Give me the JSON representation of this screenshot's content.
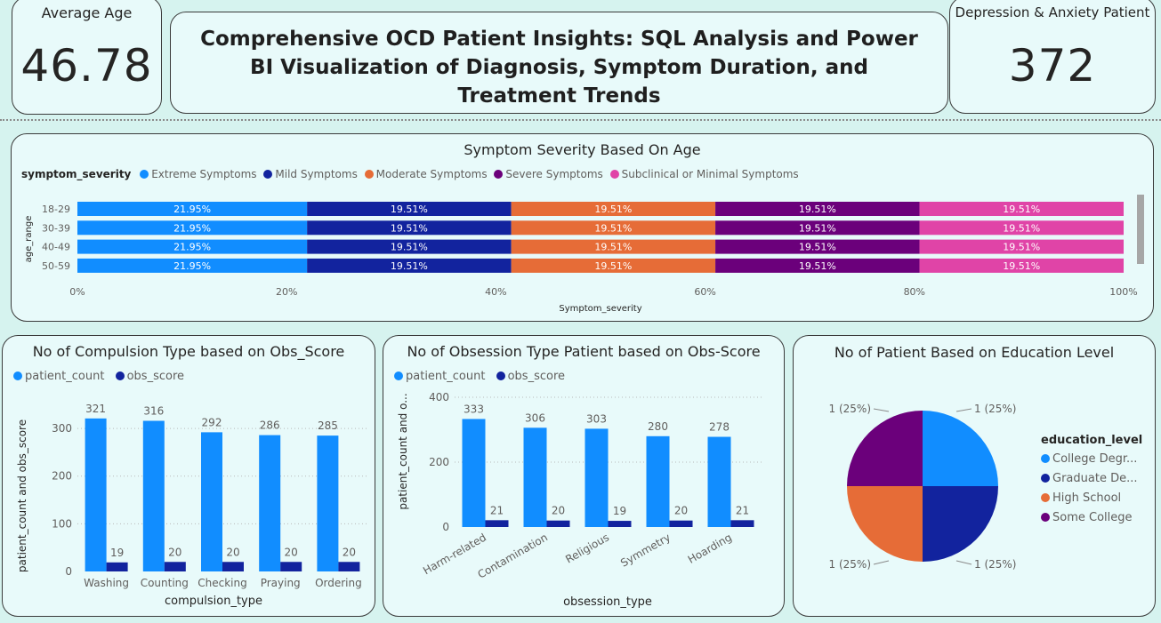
{
  "kpi_left": {
    "label": "Average Age",
    "value": "46.78"
  },
  "kpi_right": {
    "label": "Depression & Anxiety Patient",
    "value": "372"
  },
  "report_title": "Comprehensive OCD Patient Insights: SQL Analysis and Power BI Visualization of Diagnosis, Symptom Duration, and Treatment Trends",
  "colors": {
    "extreme": "#118dff",
    "mild": "#12239e",
    "moderate": "#e66c37",
    "severe": "#6b007b",
    "subclinical": "#e044a7",
    "patient_count": "#118dff",
    "obs_score": "#12239e"
  },
  "severity_chart": {
    "title": "Symptom Severity Based On Age",
    "legend_title": "symptom_severity",
    "xlabel": "Symptom_severity",
    "ylabel": "age_range",
    "x_ticks": [
      "0%",
      "20%",
      "40%",
      "60%",
      "80%",
      "100%"
    ]
  },
  "compulsion_chart": {
    "title": "No of Compulsion Type based on Obs_Score",
    "xlabel": "compulsion_type",
    "ylabel": "patient_count and obs_score",
    "y_ticks": [
      "0",
      "100",
      "200",
      "300"
    ]
  },
  "obsession_chart": {
    "title": "No of Obsession Type Patient based on Obs-Score",
    "xlabel": "obsession_type",
    "ylabel": "patient_count and o...",
    "y_ticks": [
      "0",
      "200",
      "400"
    ]
  },
  "education_chart": {
    "title": "No of Patient Based on Education Level",
    "legend_title": "education_level",
    "legend_labels": [
      "College Degr...",
      "Graduate De...",
      "High School",
      "Some College"
    ]
  },
  "chart_data": [
    {
      "type": "bar",
      "orientation": "horizontal",
      "stacked": "100%",
      "title": "Symptom Severity Based On Age",
      "xlabel": "Symptom_severity",
      "ylabel": "age_range",
      "categories": [
        "18-29",
        "30-39",
        "40-49",
        "50-59"
      ],
      "legend_position": "top-left",
      "xlim": [
        0,
        100
      ],
      "series": [
        {
          "name": "Extreme Symptoms",
          "values": [
            21.95,
            21.95,
            21.95,
            21.95
          ]
        },
        {
          "name": "Mild Symptoms",
          "values": [
            19.51,
            19.51,
            19.51,
            19.51
          ]
        },
        {
          "name": "Moderate Symptoms",
          "values": [
            19.51,
            19.51,
            19.51,
            19.51
          ]
        },
        {
          "name": "Severe Symptoms",
          "values": [
            19.51,
            19.51,
            19.51,
            19.51
          ]
        },
        {
          "name": "Subclinical or Minimal Symptoms",
          "values": [
            19.51,
            19.51,
            19.51,
            19.51
          ]
        }
      ]
    },
    {
      "type": "bar",
      "title": "No of Compulsion Type based on Obs_Score",
      "xlabel": "compulsion_type",
      "ylabel": "patient_count and obs_score",
      "categories": [
        "Washing",
        "Counting",
        "Checking",
        "Praying",
        "Ordering"
      ],
      "ylim": [
        0,
        330
      ],
      "grid": true,
      "legend_position": "top-left",
      "series": [
        {
          "name": "patient_count",
          "values": [
            321,
            316,
            292,
            286,
            285
          ]
        },
        {
          "name": "obs_score",
          "values": [
            19,
            20,
            20,
            20,
            20
          ]
        }
      ]
    },
    {
      "type": "bar",
      "title": "No of Obsession Type Patient based on Obs-Score",
      "xlabel": "obsession_type",
      "ylabel": "patient_count and o...",
      "categories": [
        "Harm-related",
        "Contamination",
        "Religious",
        "Symmetry",
        "Hoarding"
      ],
      "ylim": [
        0,
        400
      ],
      "grid": true,
      "legend_position": "top-left",
      "series": [
        {
          "name": "patient_count",
          "values": [
            333,
            306,
            303,
            280,
            278
          ]
        },
        {
          "name": "obs_score",
          "values": [
            21,
            20,
            19,
            20,
            21
          ]
        }
      ]
    },
    {
      "type": "pie",
      "title": "No of Patient Based on Education Level",
      "legend_position": "right",
      "labels": [
        "College Degr...",
        "Graduate De...",
        "High School",
        "Some College"
      ],
      "values": [
        1,
        1,
        1,
        1
      ],
      "data_labels": [
        "1 (25%)",
        "1 (25%)",
        "1 (25%)",
        "1 (25%)"
      ]
    }
  ]
}
